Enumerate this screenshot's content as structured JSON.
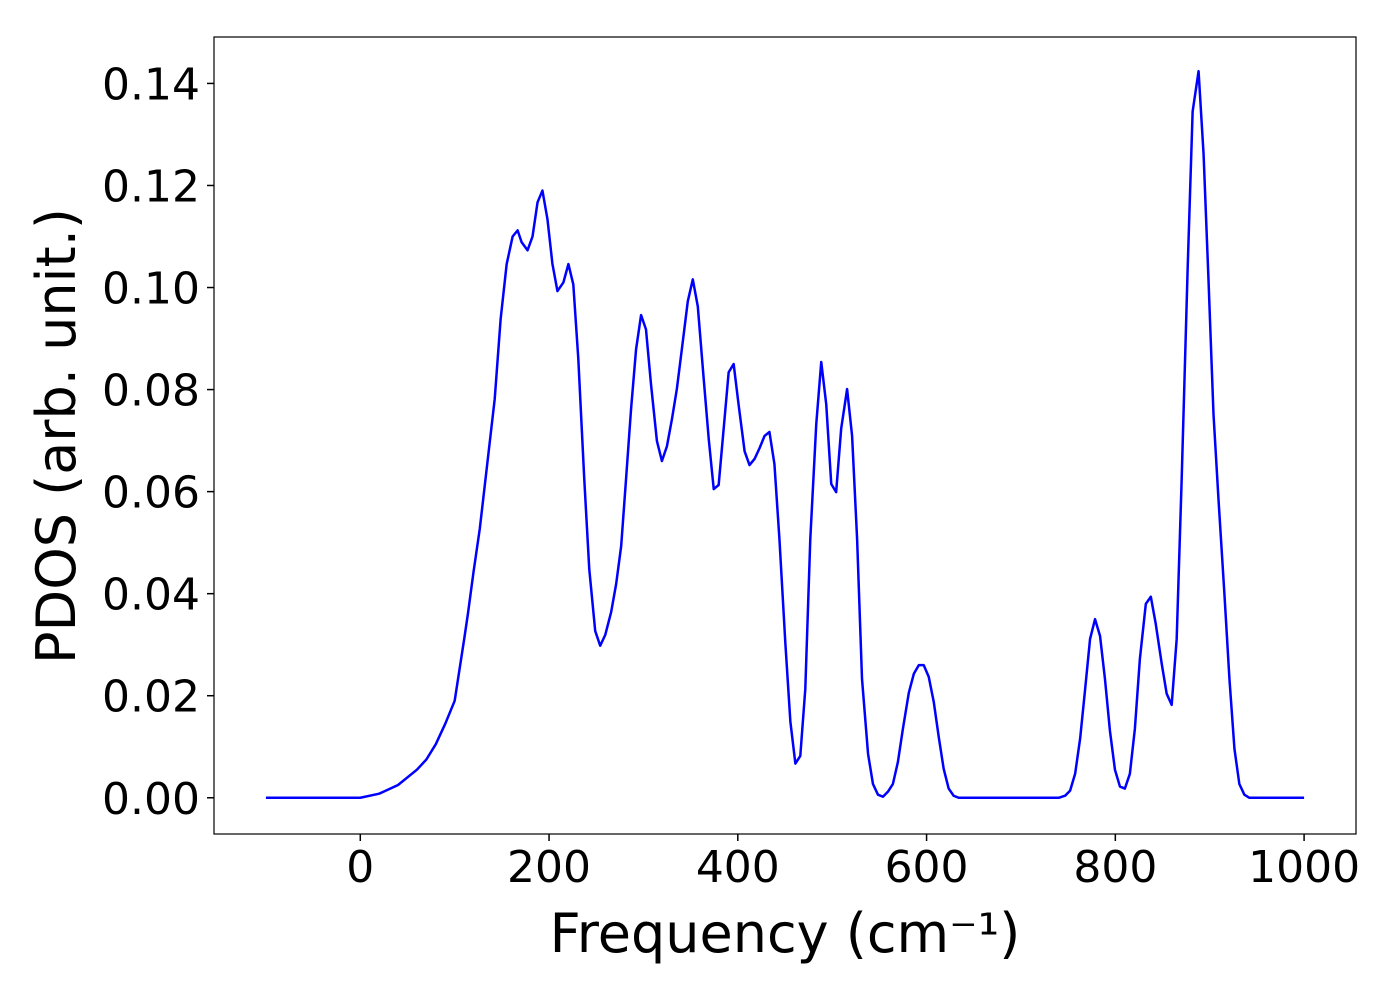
{
  "chart_data": {
    "type": "line",
    "x_label": "Frequency (cm⁻¹)",
    "y_label": "PDOS (arb. unit.)",
    "xlim": [
      -155,
      1055
    ],
    "ylim": [
      -0.0071,
      0.1491
    ],
    "xticks": [
      0,
      200,
      400,
      600,
      800,
      1000
    ],
    "yticks": [
      {
        "value": 0,
        "label": "0.00"
      },
      0.02,
      0.04,
      0.06,
      0.08,
      {
        "value": 0.1,
        "label": "0.10"
      },
      0.12,
      0.14
    ],
    "grid": false,
    "series": [
      {
        "color": "#0000ff",
        "x": [
          -100,
          -50,
          -20,
          0,
          20,
          40,
          60,
          70,
          80,
          90,
          100,
          105,
          110,
          114,
          120,
          126.6,
          134,
          142.4,
          148.7,
          155.1,
          161.4,
          166.7,
          170.9,
          177.2,
          182.5,
          187.8,
          193,
          198.3,
          203.6,
          208.9,
          215.2,
          220.5,
          225.7,
          231,
          237.3,
          242.6,
          248.9,
          254.2,
          259.5,
          265.8,
          271.1,
          276.4,
          281.6,
          286.9,
          292.2,
          297.5,
          302.7,
          308,
          314.3,
          319.6,
          324.9,
          330.2,
          335.4,
          340.7,
          347,
          352.3,
          357.6,
          363.9,
          369.2,
          374.5,
          379.7,
          385,
          390.3,
          395.6,
          400.8,
          407.2,
          412.4,
          417.7,
          423,
          428.3,
          433.5,
          438.8,
          444.1,
          450.4,
          455.7,
          461,
          466.2,
          471.5,
          476.8,
          483.1,
          488.4,
          493.7,
          499,
          504.2,
          509.5,
          515.8,
          521.1,
          526.4,
          531.6,
          538,
          543.2,
          548.5,
          553.8,
          559.1,
          564.3,
          569.6,
          574.9,
          581.2,
          586.5,
          591.8,
          597,
          602.3,
          607.6,
          612.9,
          618.1,
          623.4,
          628.7,
          634,
          700,
          740,
          746.8,
          752.1,
          757.4,
          762.7,
          768,
          773.2,
          778.5,
          783.8,
          789,
          794.3,
          799.6,
          804.9,
          810.1,
          815.4,
          820.7,
          826,
          832.3,
          837.6,
          842.8,
          849.2,
          854.4,
          859.7,
          865,
          870.3,
          876.6,
          881.9,
          888.2,
          893.5,
          898.7,
          904,
          909.3,
          915.6,
          920.9,
          926.2,
          931.4,
          936.7,
          942,
          1000
        ],
        "values": [
          0,
          0,
          0,
          0,
          0.0008,
          0.0025,
          0.0055,
          0.0075,
          0.0105,
          0.0145,
          0.019,
          0.025,
          0.031,
          0.036,
          0.0443,
          0.0527,
          0.0646,
          0.0781,
          0.0938,
          0.1046,
          0.11,
          0.1112,
          0.1089,
          0.1073,
          0.11,
          0.1167,
          0.119,
          0.1134,
          0.1046,
          0.0993,
          0.101,
          0.1046,
          0.1006,
          0.086,
          0.0625,
          0.0448,
          0.0327,
          0.0298,
          0.0319,
          0.0364,
          0.0419,
          0.0493,
          0.0625,
          0.0762,
          0.0879,
          0.0946,
          0.0918,
          0.0811,
          0.0699,
          0.066,
          0.0689,
          0.0742,
          0.0801,
          0.0879,
          0.0973,
          0.1016,
          0.0963,
          0.082,
          0.0703,
          0.0605,
          0.0613,
          0.0723,
          0.0834,
          0.085,
          0.0771,
          0.0679,
          0.0652,
          0.0664,
          0.0685,
          0.0709,
          0.0717,
          0.0654,
          0.0507,
          0.0302,
          0.0149,
          0.0067,
          0.0082,
          0.0213,
          0.0507,
          0.0732,
          0.0854,
          0.0771,
          0.0615,
          0.0599,
          0.0723,
          0.0801,
          0.0709,
          0.0507,
          0.0233,
          0.0086,
          0.0027,
          0.0006,
          0.0002,
          0.0012,
          0.0027,
          0.007,
          0.0135,
          0.0206,
          0.0243,
          0.026,
          0.026,
          0.0237,
          0.0188,
          0.0119,
          0.0057,
          0.0018,
          0.0004,
          0,
          0,
          0,
          0.0004,
          0.0014,
          0.0047,
          0.0116,
          0.0213,
          0.0311,
          0.035,
          0.0317,
          0.0233,
          0.0131,
          0.0055,
          0.0022,
          0.0018,
          0.0047,
          0.0135,
          0.0272,
          0.038,
          0.0394,
          0.0341,
          0.0262,
          0.0204,
          0.0182,
          0.0311,
          0.0625,
          0.1036,
          0.1345,
          0.1424,
          0.1261,
          0.1016,
          0.0752,
          0.0585,
          0.0399,
          0.0233,
          0.0096,
          0.0027,
          0.0006,
          0,
          0
        ]
      }
    ]
  }
}
